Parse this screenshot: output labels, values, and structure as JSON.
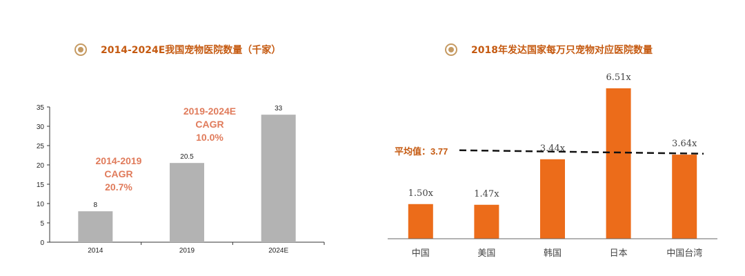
{
  "left_chart": {
    "title": "2014-2024E我国宠物医院数量（千家）",
    "bar_color": "#b3b3b3",
    "annotation_color": "#e07b5b",
    "annotations": [
      {
        "id": "cagr1",
        "lines": [
          "2014-2019",
          "CAGR",
          "20.7%"
        ]
      },
      {
        "id": "cagr2",
        "lines": [
          "2019-2024E",
          "CAGR",
          "10.0%"
        ]
      }
    ]
  },
  "right_chart": {
    "title": "2018年发达国家每万只宠物对应医院数量",
    "bar_color": "#ec6c1a",
    "avg_label": "平均值：3.77",
    "data_labels": [
      "1.50x",
      "1.47x",
      "3.44x",
      "6.51x",
      "3.64x"
    ]
  },
  "chart_data": [
    {
      "type": "bar",
      "title": "2014-2024E我国宠物医院数量（千家）",
      "categories": [
        "2014",
        "2019",
        "2024E"
      ],
      "values": [
        8,
        20.5,
        33
      ],
      "data_labels": [
        "8",
        "20.5",
        "33"
      ],
      "ylim": [
        0,
        35
      ],
      "yticks": [
        "0",
        "5",
        "10",
        "15",
        "20",
        "25",
        "30",
        "35"
      ],
      "grid": false
    },
    {
      "type": "bar",
      "title": "2018年发达国家每万只宠物对应医院数量",
      "categories": [
        "中国",
        "美国",
        "韩国",
        "日本",
        "中国台湾"
      ],
      "values": [
        1.5,
        1.47,
        3.44,
        6.51,
        3.64
      ],
      "reference_line": 3.77,
      "grid": false
    }
  ]
}
